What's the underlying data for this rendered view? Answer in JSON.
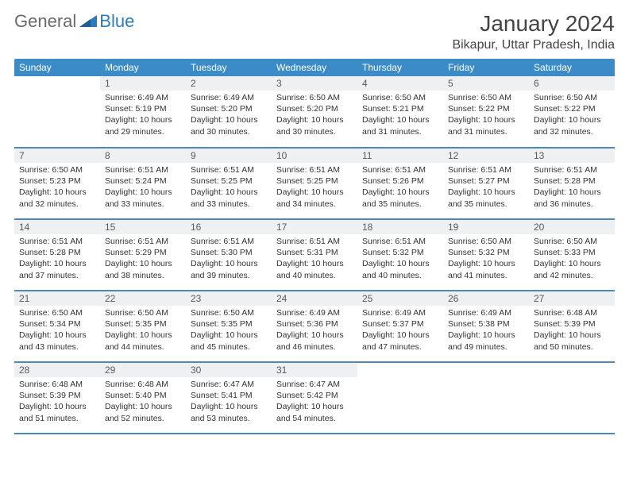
{
  "brand": {
    "general": "General",
    "blue": "Blue"
  },
  "title": "January 2024",
  "location": "Bikapur, Uttar Pradesh, India",
  "colors": {
    "header_bg": "#3b8bc9",
    "header_text": "#ffffff",
    "daynum_bg": "#eef0f1",
    "row_border": "#4f88b5",
    "logo_gray": "#6a6a6a",
    "logo_blue": "#2b7bbd"
  },
  "dow": [
    "Sunday",
    "Monday",
    "Tuesday",
    "Wednesday",
    "Thursday",
    "Friday",
    "Saturday"
  ],
  "start_offset": 1,
  "days": [
    {
      "n": 1,
      "sr": "6:49 AM",
      "ss": "5:19 PM",
      "dh": 10,
      "dm": 29
    },
    {
      "n": 2,
      "sr": "6:49 AM",
      "ss": "5:20 PM",
      "dh": 10,
      "dm": 30
    },
    {
      "n": 3,
      "sr": "6:50 AM",
      "ss": "5:20 PM",
      "dh": 10,
      "dm": 30
    },
    {
      "n": 4,
      "sr": "6:50 AM",
      "ss": "5:21 PM",
      "dh": 10,
      "dm": 31
    },
    {
      "n": 5,
      "sr": "6:50 AM",
      "ss": "5:22 PM",
      "dh": 10,
      "dm": 31
    },
    {
      "n": 6,
      "sr": "6:50 AM",
      "ss": "5:22 PM",
      "dh": 10,
      "dm": 32
    },
    {
      "n": 7,
      "sr": "6:50 AM",
      "ss": "5:23 PM",
      "dh": 10,
      "dm": 32
    },
    {
      "n": 8,
      "sr": "6:51 AM",
      "ss": "5:24 PM",
      "dh": 10,
      "dm": 33
    },
    {
      "n": 9,
      "sr": "6:51 AM",
      "ss": "5:25 PM",
      "dh": 10,
      "dm": 33
    },
    {
      "n": 10,
      "sr": "6:51 AM",
      "ss": "5:25 PM",
      "dh": 10,
      "dm": 34
    },
    {
      "n": 11,
      "sr": "6:51 AM",
      "ss": "5:26 PM",
      "dh": 10,
      "dm": 35
    },
    {
      "n": 12,
      "sr": "6:51 AM",
      "ss": "5:27 PM",
      "dh": 10,
      "dm": 35
    },
    {
      "n": 13,
      "sr": "6:51 AM",
      "ss": "5:28 PM",
      "dh": 10,
      "dm": 36
    },
    {
      "n": 14,
      "sr": "6:51 AM",
      "ss": "5:28 PM",
      "dh": 10,
      "dm": 37
    },
    {
      "n": 15,
      "sr": "6:51 AM",
      "ss": "5:29 PM",
      "dh": 10,
      "dm": 38
    },
    {
      "n": 16,
      "sr": "6:51 AM",
      "ss": "5:30 PM",
      "dh": 10,
      "dm": 39
    },
    {
      "n": 17,
      "sr": "6:51 AM",
      "ss": "5:31 PM",
      "dh": 10,
      "dm": 40
    },
    {
      "n": 18,
      "sr": "6:51 AM",
      "ss": "5:32 PM",
      "dh": 10,
      "dm": 40
    },
    {
      "n": 19,
      "sr": "6:50 AM",
      "ss": "5:32 PM",
      "dh": 10,
      "dm": 41
    },
    {
      "n": 20,
      "sr": "6:50 AM",
      "ss": "5:33 PM",
      "dh": 10,
      "dm": 42
    },
    {
      "n": 21,
      "sr": "6:50 AM",
      "ss": "5:34 PM",
      "dh": 10,
      "dm": 43
    },
    {
      "n": 22,
      "sr": "6:50 AM",
      "ss": "5:35 PM",
      "dh": 10,
      "dm": 44
    },
    {
      "n": 23,
      "sr": "6:50 AM",
      "ss": "5:35 PM",
      "dh": 10,
      "dm": 45
    },
    {
      "n": 24,
      "sr": "6:49 AM",
      "ss": "5:36 PM",
      "dh": 10,
      "dm": 46
    },
    {
      "n": 25,
      "sr": "6:49 AM",
      "ss": "5:37 PM",
      "dh": 10,
      "dm": 47
    },
    {
      "n": 26,
      "sr": "6:49 AM",
      "ss": "5:38 PM",
      "dh": 10,
      "dm": 49
    },
    {
      "n": 27,
      "sr": "6:48 AM",
      "ss": "5:39 PM",
      "dh": 10,
      "dm": 50
    },
    {
      "n": 28,
      "sr": "6:48 AM",
      "ss": "5:39 PM",
      "dh": 10,
      "dm": 51
    },
    {
      "n": 29,
      "sr": "6:48 AM",
      "ss": "5:40 PM",
      "dh": 10,
      "dm": 52
    },
    {
      "n": 30,
      "sr": "6:47 AM",
      "ss": "5:41 PM",
      "dh": 10,
      "dm": 53
    },
    {
      "n": 31,
      "sr": "6:47 AM",
      "ss": "5:42 PM",
      "dh": 10,
      "dm": 54
    }
  ],
  "labels": {
    "sunrise": "Sunrise:",
    "sunset": "Sunset:",
    "daylight_prefix": "Daylight:",
    "hours_word": "hours",
    "and_word": "and",
    "minutes_word": "minutes."
  }
}
